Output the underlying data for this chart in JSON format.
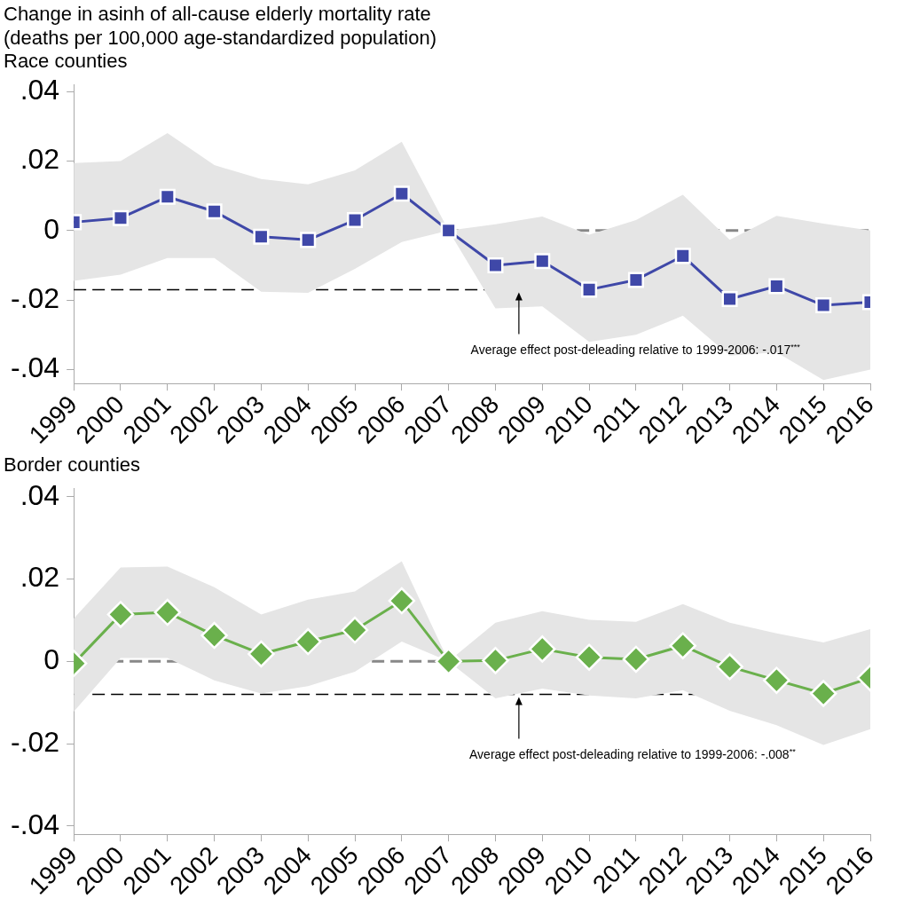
{
  "chart_data": [
    {
      "type": "line",
      "title": "Change in asinh of all-cause elderly mortality rate\n(deaths per 100,000 age-standardized population)",
      "subtitle": "Race counties",
      "x": [
        1999,
        2000,
        2001,
        2002,
        2003,
        2004,
        2005,
        2006,
        2007,
        2008,
        2009,
        2010,
        2011,
        2012,
        2013,
        2014,
        2015,
        2016
      ],
      "series": [
        {
          "color": "#3f48a8",
          "values": [
            0.0024,
            0.0036,
            0.0097,
            0.0055,
            -0.0018,
            -0.0027,
            0.003,
            0.0106,
            0,
            -0.01,
            -0.0088,
            -0.017,
            -0.0142,
            -0.0073,
            -0.0197,
            -0.016,
            -0.0215,
            -0.0206
          ],
          "lower": [
            -0.0145,
            -0.0127,
            -0.0079,
            -0.0079,
            -0.0176,
            -0.0179,
            -0.011,
            -0.0033,
            0,
            -0.0224,
            -0.0218,
            -0.032,
            -0.03,
            -0.0245,
            -0.036,
            -0.035,
            -0.043,
            -0.04
          ],
          "upper": [
            0.0194,
            0.02,
            0.028,
            0.0188,
            0.0148,
            0.0133,
            0.0173,
            0.0255,
            0,
            0.0018,
            0.004,
            -0.0012,
            0.003,
            0.0103,
            -0.0027,
            0.0042,
            0.002,
            0
          ]
        }
      ],
      "xlim": [
        1999,
        2016
      ],
      "xticks": [
        1999,
        2000,
        2001,
        2002,
        2003,
        2004,
        2005,
        2006,
        2007,
        2008,
        2009,
        2010,
        2011,
        2012,
        2013,
        2014,
        2015,
        2016
      ],
      "ylim": [
        -0.044,
        0.042
      ],
      "yticks": [
        {
          "value": -0.04,
          "label": "-.04"
        },
        {
          "value": -0.02,
          "label": "-.02"
        },
        {
          "value": 0,
          "label": "0"
        },
        {
          "value": 0.02,
          "label": ".02"
        },
        {
          "value": 0.04,
          "label": ".04"
        }
      ],
      "ref_lines": [
        {
          "axis": "y",
          "value": 0,
          "color": "#888888",
          "line_style": "dashed"
        },
        {
          "axis": "y",
          "value": -0.017,
          "color": "#000000",
          "line_style": "dashed"
        }
      ],
      "annotations": [
        {
          "text": "Average effect post-deleading relative to 1999-2006: -.017$^{***}$",
          "x": 2008.5,
          "y": -0.017
        }
      ],
      "marker": "square",
      "line_style": "solid",
      "grid": false,
      "legend": false
    },
    {
      "type": "line",
      "title": "Border counties",
      "x": [
        1999,
        2000,
        2001,
        2002,
        2003,
        2004,
        2005,
        2006,
        2007,
        2008,
        2009,
        2010,
        2011,
        2012,
        2013,
        2014,
        2015,
        2016
      ],
      "series": [
        {
          "color": "#6ab04c",
          "values": [
            -0.0005,
            0.0114,
            0.0119,
            0.0063,
            0.0018,
            0.0048,
            0.0076,
            0.0147,
            0,
            0.0002,
            0.003,
            0.001,
            0.0005,
            0.0038,
            -0.0013,
            -0.0046,
            -0.0078,
            -0.004
          ],
          "lower": [
            -0.0122,
            0.0008,
            0.0008,
            -0.0046,
            -0.0078,
            -0.006,
            -0.0025,
            0.0048,
            0,
            -0.009,
            -0.0066,
            -0.0083,
            -0.009,
            -0.007,
            -0.012,
            -0.0155,
            -0.0203,
            -0.0165
          ],
          "upper": [
            0.0104,
            0.0228,
            0.023,
            0.018,
            0.0114,
            0.015,
            0.017,
            0.0243,
            0,
            0.0094,
            0.0122,
            0.0101,
            0.0096,
            0.0139,
            0.0094,
            0.0068,
            0.0046,
            0.0078
          ]
        }
      ],
      "xlim": [
        1999,
        2016
      ],
      "xticks": [
        1999,
        2000,
        2001,
        2002,
        2003,
        2004,
        2005,
        2006,
        2007,
        2008,
        2009,
        2010,
        2011,
        2012,
        2013,
        2014,
        2015,
        2016
      ],
      "ylim": [
        -0.042,
        0.042
      ],
      "yticks": [
        {
          "value": -0.04,
          "label": "-.04"
        },
        {
          "value": -0.02,
          "label": "-.02"
        },
        {
          "value": 0,
          "label": "0"
        },
        {
          "value": 0.02,
          "label": ".02"
        },
        {
          "value": 0.04,
          "label": ".04"
        }
      ],
      "ref_lines": [
        {
          "axis": "y",
          "value": 0,
          "color": "#888888",
          "line_style": "dashed"
        },
        {
          "axis": "y",
          "value": -0.008,
          "color": "#000000",
          "line_style": "dashed"
        }
      ],
      "annotations": [
        {
          "text": "Average effect post-deleading relative to 1999-2006: -.008$^{**}$",
          "x": 2008.5,
          "y": -0.008
        }
      ],
      "marker": "diamond",
      "line_style": "solid",
      "grid": false,
      "legend": false
    }
  ]
}
